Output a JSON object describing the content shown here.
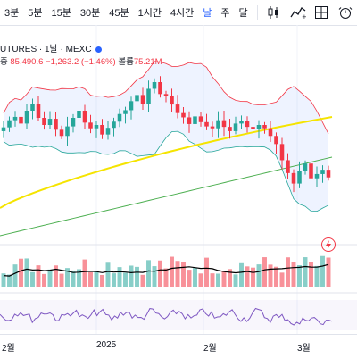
{
  "toolbar": {
    "timeframes": [
      "3분",
      "5분",
      "15분",
      "30분",
      "45분",
      "1시간",
      "4시간",
      "날",
      "주",
      "달"
    ],
    "active": "날",
    "icons": [
      "candles-icon",
      "indicators-icon",
      "layout-icon",
      "alert-icon"
    ]
  },
  "legend": {
    "symbol": "UTURES · 1날 · MEXC",
    "change_prefix": "종",
    "price": "85,490.6",
    "change": "−1,263.2 (−1.46%)",
    "volume_label": "볼륨",
    "volume_value": "75.21M"
  },
  "xaxis": {
    "labels": [
      "2월",
      "2025",
      "2월",
      "3월"
    ]
  },
  "colors": {
    "up": "#26a69a",
    "down": "#f23645",
    "ma_yellow": "#f5e400",
    "ma_green": "#4caf50",
    "bb": "#f23645",
    "accent": "#2962ff"
  },
  "chart_data": {
    "type": "candlestick",
    "title": "",
    "xlabel": "",
    "ylabel": "",
    "note": "approximate price path visible on screen",
    "close": [
      96000,
      97500,
      98200,
      96800,
      99500,
      101000,
      98000,
      96500,
      97800,
      95500,
      94200,
      96200,
      98000,
      99500,
      97000,
      95800,
      96500,
      94500,
      95900,
      97200,
      98800,
      99600,
      101500,
      102800,
      100900,
      104100,
      105500,
      103000,
      102500,
      100800,
      99000,
      98100,
      96700,
      98300,
      97100,
      96200,
      95800,
      97500,
      96100,
      95200,
      96800,
      97400,
      96100,
      95700,
      96500,
      95800,
      94200,
      92500,
      89100,
      86400,
      84200,
      86900,
      88400,
      85300,
      86200,
      87100,
      85490
    ]
  }
}
